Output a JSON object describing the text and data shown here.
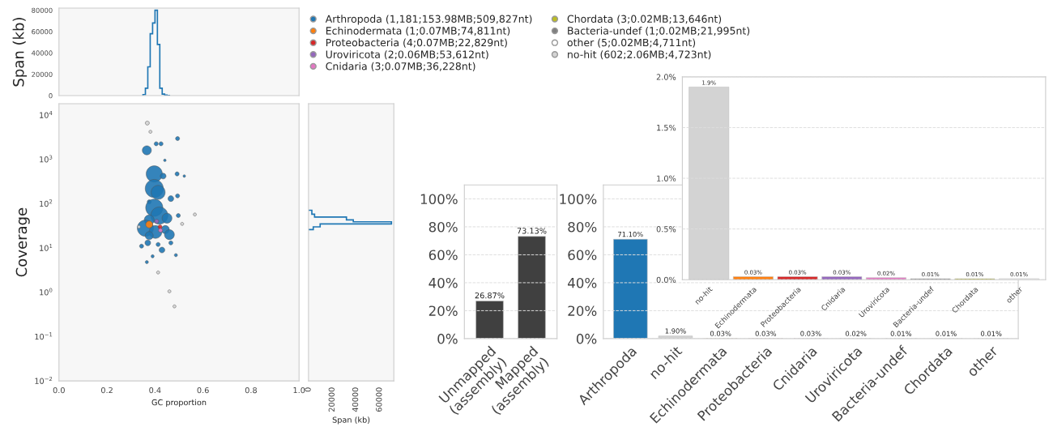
{
  "chart_data": [
    {
      "type": "histogram",
      "ylabel": "Span (kb)",
      "bins": [
        0.35,
        0.36,
        0.37,
        0.38,
        0.39,
        0.4,
        0.41,
        0.42,
        0.43,
        0.44,
        0.45,
        0.46
      ],
      "values": [
        1000,
        7000,
        27000,
        58000,
        68000,
        80000,
        48000,
        7000,
        1500,
        500,
        200
      ],
      "color": "#1f77b4",
      "xlim": [
        0,
        1
      ],
      "ylim": [
        0,
        82000
      ],
      "yticks": [
        0,
        20000,
        40000,
        60000,
        80000
      ],
      "tick_labels": "y",
      "grid": false
    },
    {
      "type": "bubble",
      "xlabel": "GC proportion",
      "ylabel": "Coverage",
      "log": "y",
      "xlim": [
        0,
        1
      ],
      "ylim": [
        0.01,
        18000
      ],
      "xticks": [
        {
          "value": 0,
          "label": "0.0"
        },
        {
          "value": 0.2,
          "label": "0.2"
        },
        {
          "value": 0.4,
          "label": "0.4"
        },
        {
          "value": 0.6,
          "label": "0.6"
        },
        {
          "value": 0.8,
          "label": "0.8"
        },
        {
          "value": 1,
          "label": "1.0"
        }
      ],
      "yticks": [
        {
          "value": 0.01,
          "label": "10$^{−2}$"
        },
        {
          "value": 0.1,
          "label": "10$^{−1}$"
        },
        {
          "value": 1,
          "label": "10$^{0}$"
        },
        {
          "value": 10,
          "label": "10$^{1}$"
        },
        {
          "value": 100,
          "label": "10$^{2}$"
        },
        {
          "value": 1000,
          "label": "10$^{3}$"
        },
        {
          "value": 10000,
          "label": "10$^{4}$"
        }
      ],
      "legend": "top right",
      "grid": false,
      "series": [
        {
          "name": "Arthropoda (1,181;153.98MB;509,827nt)",
          "color": "#1f77b4",
          "x": [
            0.494,
            0.405,
            0.425,
            0.366,
            0.441,
            0.397,
            0.434,
            0.522,
            0.492,
            0.397,
            0.413,
            0.466,
            0.494,
            0.376,
            0.397,
            0.418,
            0.45,
            0.376,
            0.497,
            0.36,
            0.443,
            0.402,
            0.376,
            0.46,
            0.37,
            0.413,
            0.429,
            0.466,
            0.344,
            0.366,
            0.39,
            0.487
          ],
          "values": [
            2950,
            2250,
            2250,
            1600,
            950,
            470,
            420,
            420,
            470,
            220,
            180,
            130,
            150,
            110,
            81,
            54,
            47,
            43,
            54,
            28,
            26,
            23,
            19,
            20,
            13,
            12,
            9,
            13,
            11,
            4.8,
            6.5,
            6.9
          ],
          "sizes": [
            0.05,
            0.05,
            0.05,
            0.25,
            0.02,
            0.8,
            0.1,
            0.02,
            0.05,
            1.0,
            0.6,
            0.1,
            0.05,
            0.05,
            0.9,
            0.9,
            0.3,
            0.3,
            0.05,
            0.8,
            0.2,
            0.5,
            0.2,
            0.3,
            0.1,
            0.05,
            0.1,
            0.05,
            0.05,
            0.03,
            0.03,
            0.03
          ]
        },
        {
          "name": "Echinodermata (1;0.07MB;74,811nt)",
          "color": "#ff7f0e",
          "x": [
            0.376
          ],
          "values": [
            34
          ],
          "sizes": [
            0.15
          ]
        },
        {
          "name": "Proteobacteria (4;0.07MB;22,829nt)",
          "color": "#d62728",
          "x": [
            0.421
          ],
          "values": [
            30
          ],
          "sizes": [
            0.05
          ]
        },
        {
          "name": "Uroviricota (2;0.06MB;53,612nt)",
          "color": "#9467bd",
          "x": [
            0.407
          ],
          "values": [
            40
          ],
          "sizes": [
            0.05
          ]
        },
        {
          "name": "Cnidaria (3;0.07MB;36,228nt)",
          "color": "#e377c2",
          "x": [
            0.423
          ],
          "values": [
            25
          ],
          "sizes": [
            0.05
          ]
        },
        {
          "name": "Chordata (3;0.02MB;13,646nt)",
          "color": "#bcbd22"
        },
        {
          "name": "Bacteria-undef (1;0.02MB;21,995nt)",
          "color": "#7f7f7f"
        },
        {
          "name": "other (5;0.02MB;4,711nt)",
          "color": "#ffffff"
        },
        {
          "name": "no-hit (602;2.06MB;4,723nt)",
          "color": "#d3d3d3",
          "x": [
            0.368,
            0.381,
            0.481,
            0.566,
            0.333,
            0.413,
            0.46,
            0.513
          ],
          "values": [
            6600,
            4200,
            0.48,
            57,
            30,
            2.8,
            1.05,
            35
          ],
          "sizes": [
            0.05,
            0.03,
            0.03,
            0.03,
            0.03,
            0.03,
            0.03,
            0.03
          ]
        }
      ]
    },
    {
      "type": "histogram",
      "orientation": "horizontal",
      "xlabel": "Span (kb)",
      "log": "y",
      "bins": [
        26,
        30,
        35,
        39,
        43,
        50,
        58,
        71
      ],
      "values": [
        4000,
        9800,
        70000,
        37800,
        32000,
        5100,
        2800
      ],
      "color": "#1f77b4",
      "xlim": [
        0,
        72000
      ],
      "ylim": [
        0.01,
        18000
      ],
      "xticks": [
        0,
        20000,
        40000,
        60000
      ],
      "tick_labels": "x",
      "grid": false
    },
    {
      "type": "bar",
      "categories": [
        "Unmapped\n(assembly)",
        "Mapped\n(assembly)"
      ],
      "values": [
        26.87,
        73.13
      ],
      "color": "#404040",
      "value_labels": [
        "26.87%",
        "73.13%"
      ],
      "ylim": [
        0,
        110
      ],
      "yticks": [
        {
          "value": 0,
          "label": "0%"
        },
        {
          "value": 20,
          "label": "20%"
        },
        {
          "value": 40,
          "label": "40%"
        },
        {
          "value": 60,
          "label": "60%"
        },
        {
          "value": 80,
          "label": "80%"
        },
        {
          "value": 100,
          "label": "100%"
        }
      ],
      "grid": "y"
    },
    {
      "type": "bar",
      "categories": [
        "Arthropoda",
        "no-hit",
        "Echinodermata",
        "Proteobacteria",
        "Cnidaria",
        "Uroviricota",
        "Bacteria-undef",
        "Chordata",
        "other"
      ],
      "values": [
        71.1,
        1.9,
        0.03,
        0.03,
        0.03,
        0.02,
        0.01,
        0.01,
        0.01
      ],
      "colors": [
        "#1f77b4",
        "#d3d3d3",
        "#ff7f0e",
        "#d62728",
        "#e377c2",
        "#9467bd",
        "#7f7f7f",
        "#bcbd22",
        "#ffffff"
      ],
      "value_labels": [
        "71.10%",
        "1.90%",
        "0.03%",
        "0.03%",
        "0.03%",
        "0.02%",
        "0.01%",
        "0.01%",
        "0.01%"
      ],
      "ylim": [
        0,
        110
      ],
      "yticks": [
        {
          "value": 0,
          "label": "0%"
        },
        {
          "value": 20,
          "label": "20%"
        },
        {
          "value": 40,
          "label": "40%"
        },
        {
          "value": 60,
          "label": "60%"
        },
        {
          "value": 80,
          "label": "80%"
        },
        {
          "value": 100,
          "label": "100%"
        }
      ],
      "grid": "y"
    },
    {
      "type": "bar",
      "categories": [
        "no-hit",
        "Echinodermata",
        "Proteobacteria",
        "Cnidaria",
        "Uroviricota",
        "Bacteria-undef",
        "Chordata",
        "other"
      ],
      "values": [
        1.9,
        0.03,
        0.03,
        0.03,
        0.02,
        0.01,
        0.01,
        0.01
      ],
      "colors": [
        "#d3d3d3",
        "#ff7f0e",
        "#d62728",
        "#9467bd",
        "#e377c2",
        "#7f7f7f",
        "#bcbd22",
        "#ffffff"
      ],
      "value_labels": [
        "1.9%",
        "0.03%",
        "0.03%",
        "0.03%",
        "0.02%",
        "0.01%",
        "0.01%",
        "0.01%"
      ],
      "ylim": [
        0,
        2.0
      ],
      "yticks": [
        {
          "value": 0,
          "label": "0.0%"
        },
        {
          "value": 0.5,
          "label": "0.5%"
        },
        {
          "value": 1.0,
          "label": "1.0%"
        },
        {
          "value": 1.5,
          "label": "1.5%"
        },
        {
          "value": 2.0,
          "label": "2.0%"
        }
      ],
      "grid": "y"
    }
  ]
}
